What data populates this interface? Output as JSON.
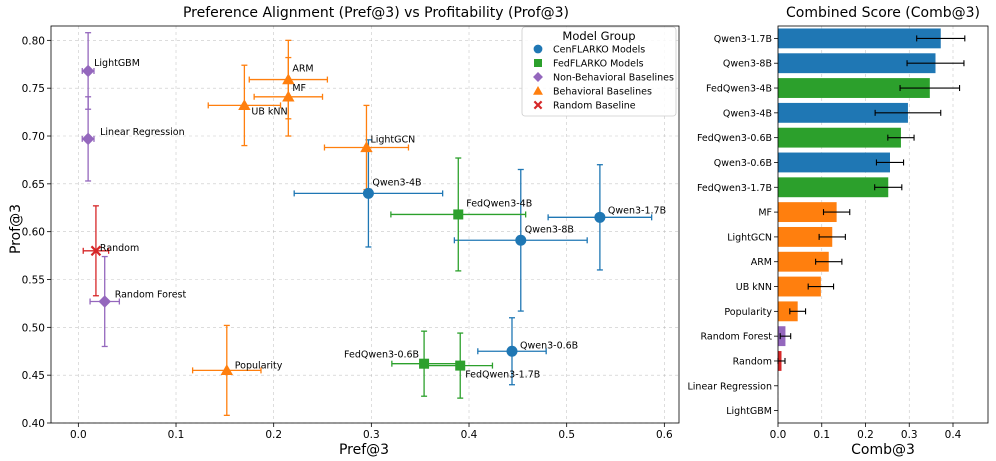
{
  "chart_data": [
    {
      "type": "scatter",
      "title": "Preference Alignment (Pref@3) vs Profitability (Prof@3)",
      "xlabel": "Pref@3",
      "ylabel": "Prof@3",
      "xlim": [
        -0.028,
        0.615
      ],
      "ylim": [
        0.4,
        0.815
      ],
      "xticks": [
        0.0,
        0.1,
        0.2,
        0.3,
        0.4,
        0.5,
        0.6
      ],
      "xtick_labels": [
        "0.0",
        "0.1",
        "0.2",
        "0.3",
        "0.4",
        "0.5",
        "0.6"
      ],
      "yticks": [
        0.4,
        0.45,
        0.5,
        0.55,
        0.6,
        0.65,
        0.7,
        0.75,
        0.8
      ],
      "ytick_labels": [
        "0.40",
        "0.45",
        "0.50",
        "0.55",
        "0.60",
        "0.65",
        "0.70",
        "0.75",
        "0.80"
      ],
      "grid": true,
      "legend": {
        "title": "Model Group",
        "placement": "top-right",
        "entries": [
          {
            "label": "CenFLARKO Models",
            "color": "#1f77b4",
            "marker": "circle"
          },
          {
            "label": "FedFLARKO Models",
            "color": "#2ca02c",
            "marker": "square"
          },
          {
            "label": "Non-Behavioral Baselines",
            "color": "#9467bd",
            "marker": "diamond"
          },
          {
            "label": "Behavioral Baselines",
            "color": "#ff7f0e",
            "marker": "triangle"
          },
          {
            "label": "Random Baseline",
            "color": "#d62728",
            "marker": "x"
          }
        ]
      },
      "points": [
        {
          "label": "Qwen3-1.7B",
          "group": 0,
          "x": 0.534,
          "y": 0.615,
          "xerr": 0.053,
          "yerr": 0.055
        },
        {
          "label": "Qwen3-8B",
          "group": 0,
          "x": 0.453,
          "y": 0.591,
          "xerr": 0.068,
          "yerr": 0.074
        },
        {
          "label": "Qwen3-4B",
          "group": 0,
          "x": 0.297,
          "y": 0.64,
          "xerr": 0.076,
          "yerr": 0.056
        },
        {
          "label": "Qwen3-0.6B",
          "group": 0,
          "x": 0.444,
          "y": 0.475,
          "xerr": 0.035,
          "yerr": 0.035
        },
        {
          "label": "FedQwen3-4B",
          "group": 1,
          "x": 0.389,
          "y": 0.618,
          "xerr": 0.069,
          "yerr": 0.059
        },
        {
          "label": "FedQwen3-0.6B",
          "group": 1,
          "x": 0.354,
          "y": 0.462,
          "xerr": 0.033,
          "yerr": 0.034
        },
        {
          "label": "FedQwen3-1.7B",
          "group": 1,
          "x": 0.391,
          "y": 0.46,
          "xerr": 0.033,
          "yerr": 0.034
        },
        {
          "label": "LightGBM",
          "group": 2,
          "x": 0.01,
          "y": 0.768,
          "xerr": 0.006,
          "yerr": 0.04
        },
        {
          "label": "Linear Regression",
          "group": 2,
          "x": 0.01,
          "y": 0.697,
          "xerr": 0.006,
          "yerr": 0.044
        },
        {
          "label": "Random Forest",
          "group": 2,
          "x": 0.027,
          "y": 0.527,
          "xerr": 0.015,
          "yerr": 0.047
        },
        {
          "label": "ARM",
          "group": 3,
          "x": 0.215,
          "y": 0.759,
          "xerr": 0.04,
          "yerr": 0.041
        },
        {
          "label": "MF",
          "group": 3,
          "x": 0.215,
          "y": 0.741,
          "xerr": 0.035,
          "yerr": 0.041
        },
        {
          "label": "UB kNN",
          "group": 3,
          "x": 0.17,
          "y": 0.732,
          "xerr": 0.037,
          "yerr": 0.042
        },
        {
          "label": "LightGCN",
          "group": 3,
          "x": 0.295,
          "y": 0.688,
          "xerr": 0.043,
          "yerr": 0.044
        },
        {
          "label": "Popularity",
          "group": 3,
          "x": 0.152,
          "y": 0.455,
          "xerr": 0.035,
          "yerr": 0.047
        },
        {
          "label": "Random",
          "group": 4,
          "x": 0.018,
          "y": 0.58,
          "xerr": 0.013,
          "yerr": 0.047
        }
      ]
    },
    {
      "type": "bar",
      "orientation": "horizontal",
      "title": "Combined Score (Comb@3)",
      "xlabel": "Comb@3",
      "xlim": [
        0,
        0.48
      ],
      "xticks": [
        0.0,
        0.1,
        0.2,
        0.3,
        0.4
      ],
      "xtick_labels": [
        "0.0",
        "0.1",
        "0.2",
        "0.3",
        "0.4"
      ],
      "grid": true,
      "categories": [
        "Qwen3-1.7B",
        "Qwen3-8B",
        "FedQwen3-4B",
        "Qwen3-4B",
        "FedQwen3-0.6B",
        "Qwen3-0.6B",
        "FedQwen3-1.7B",
        "MF",
        "LightGCN",
        "ARM",
        "UB kNN",
        "Popularity",
        "Random Forest",
        "Random",
        "Linear Regression",
        "LightGBM"
      ],
      "values": [
        0.372,
        0.36,
        0.347,
        0.297,
        0.281,
        0.256,
        0.252,
        0.134,
        0.124,
        0.116,
        0.098,
        0.045,
        0.017,
        0.008,
        0.0,
        0.0
      ],
      "errors": [
        0.055,
        0.065,
        0.068,
        0.075,
        0.03,
        0.031,
        0.031,
        0.03,
        0.03,
        0.03,
        0.029,
        0.018,
        0.012,
        0.008,
        0.0,
        0.0
      ],
      "colors": [
        "#1f77b4",
        "#1f77b4",
        "#2ca02c",
        "#1f77b4",
        "#2ca02c",
        "#1f77b4",
        "#2ca02c",
        "#ff7f0e",
        "#ff7f0e",
        "#ff7f0e",
        "#ff7f0e",
        "#ff7f0e",
        "#9467bd",
        "#d62728",
        "#9467bd",
        "#9467bd"
      ]
    }
  ]
}
